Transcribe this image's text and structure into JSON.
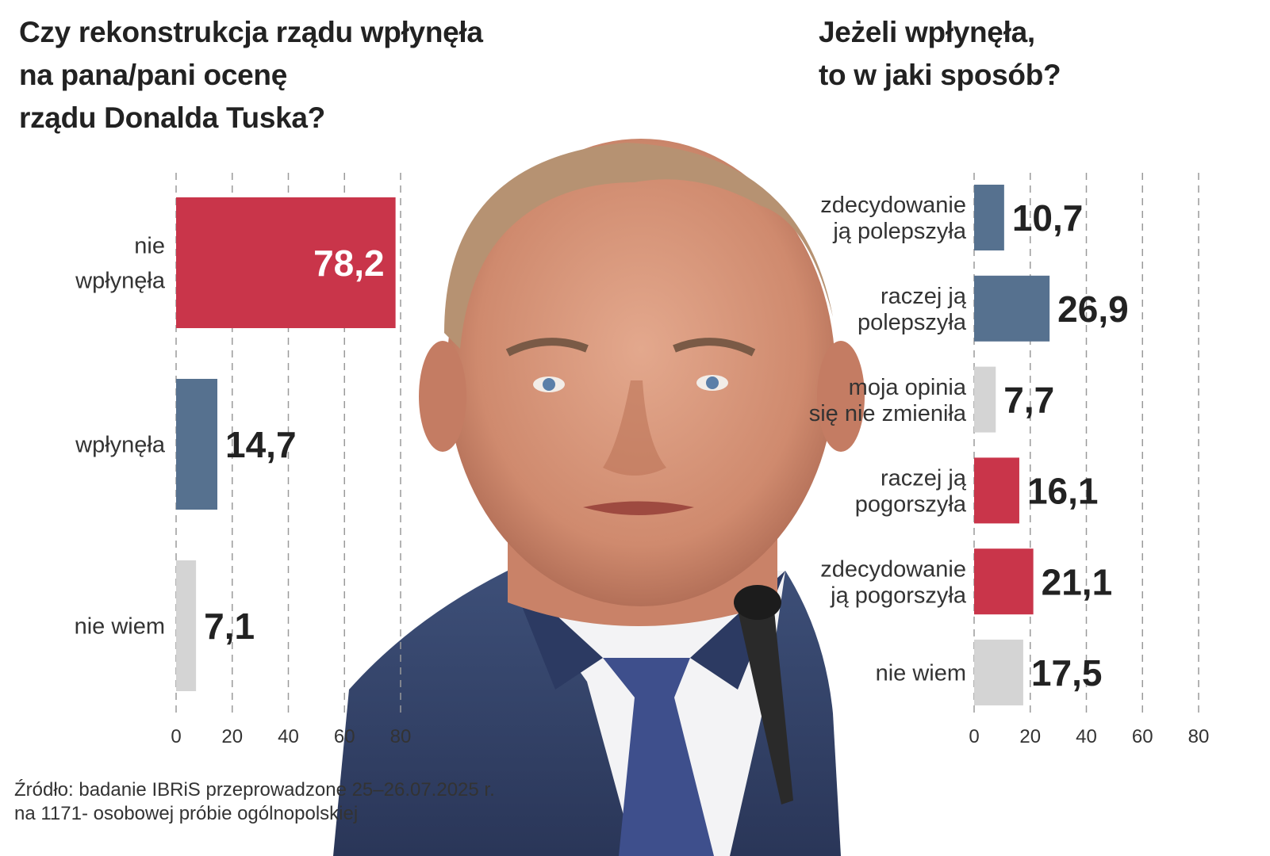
{
  "colors": {
    "red": "#c9354a",
    "blue": "#56718f",
    "gray": "#d4d4d4",
    "grid": "#9a9a9a",
    "text": "#222222"
  },
  "left_title_lines": [
    "Czy rekonstrukcja rządu wpłynęła",
    "na pana/pani ocenę",
    "rządu Donalda Tuska?"
  ],
  "right_title_lines": [
    "Jeżeli wpłynęła,",
    "to w jaki sposób?"
  ],
  "source_lines": [
    "Źródło: badanie IBRiS przeprowadzone 25–26.07.2025 r.",
    "na 1171- osobowej próbie ogólnopolskiej"
  ],
  "chart_data": [
    {
      "type": "bar",
      "orientation": "horizontal",
      "title": "Czy rekonstrukcja rządu wpłynęła na pana/pani ocenę rządu Donalda Tuska?",
      "categories": [
        [
          "nie",
          "wpłynęła"
        ],
        [
          "wpłynęła"
        ],
        [
          "nie wiem"
        ]
      ],
      "values": [
        78.2,
        14.7,
        7.1
      ],
      "value_labels": [
        "78,2",
        "14,7",
        "7,1"
      ],
      "colors": [
        "red",
        "blue",
        "gray"
      ],
      "ticks": [
        "0",
        "20",
        "40",
        "60",
        "80"
      ],
      "xlim": [
        0,
        80
      ],
      "grid": true
    },
    {
      "type": "bar",
      "orientation": "horizontal",
      "title": "Jeżeli wpłynęła, to w jaki sposób?",
      "categories": [
        [
          "zdecydowanie",
          "ją polepszyła"
        ],
        [
          "raczej ją",
          "polepszyła"
        ],
        [
          "moja opinia",
          "się nie zmieniła"
        ],
        [
          "raczej ją",
          "pogorszyła"
        ],
        [
          "zdecydowanie",
          "ją pogorszyła"
        ],
        [
          "nie wiem"
        ]
      ],
      "values": [
        10.7,
        26.9,
        7.7,
        16.1,
        21.1,
        17.5
      ],
      "value_labels": [
        "10,7",
        "26,9",
        "7,7",
        "16,1",
        "21,1",
        "17,5"
      ],
      "colors": [
        "blue",
        "blue",
        "gray",
        "red",
        "red",
        "gray"
      ],
      "ticks": [
        "0",
        "20",
        "40",
        "60",
        "80"
      ],
      "xlim": [
        0,
        80
      ],
      "grid": true
    }
  ]
}
